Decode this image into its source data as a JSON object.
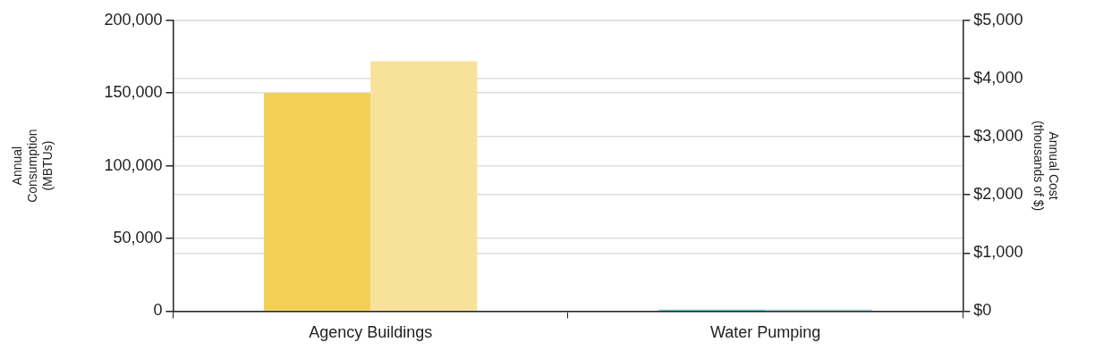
{
  "chart_data": {
    "type": "bar",
    "categories": [
      "Agency Buildings",
      "Water Pumping"
    ],
    "series": [
      {
        "axis": "y",
        "colors": [
          "#f2cf55",
          "#4bb3c8"
        ],
        "values": [
          150000,
          1000
        ]
      },
      {
        "axis": "y2",
        "colors": [
          "#f8e29a",
          "#9fd6e0"
        ],
        "values": [
          4300,
          30
        ]
      }
    ],
    "ylabel": "Annual Consumption (MBTUs)",
    "y2label": "Annual Cost (thousands of $)",
    "ylim": [
      0,
      200000
    ],
    "yticks": [
      {
        "value": 0,
        "label": "0"
      },
      {
        "value": 50000,
        "label": "50,000"
      },
      {
        "value": 100000,
        "label": "100,000"
      },
      {
        "value": 150000,
        "label": "150,000"
      },
      {
        "value": 200000,
        "label": "200,000"
      }
    ],
    "y2lim": [
      0,
      5000
    ],
    "y2ticks": [
      {
        "value": 0,
        "label": "$0"
      },
      {
        "value": 1000,
        "label": "$1,000"
      },
      {
        "value": 2000,
        "label": "$2,000"
      },
      {
        "value": 3000,
        "label": "$3,000"
      },
      {
        "value": 4000,
        "label": "$4,000"
      },
      {
        "value": 5000,
        "label": "$5,000"
      }
    ],
    "grid": "y",
    "legend": false
  }
}
